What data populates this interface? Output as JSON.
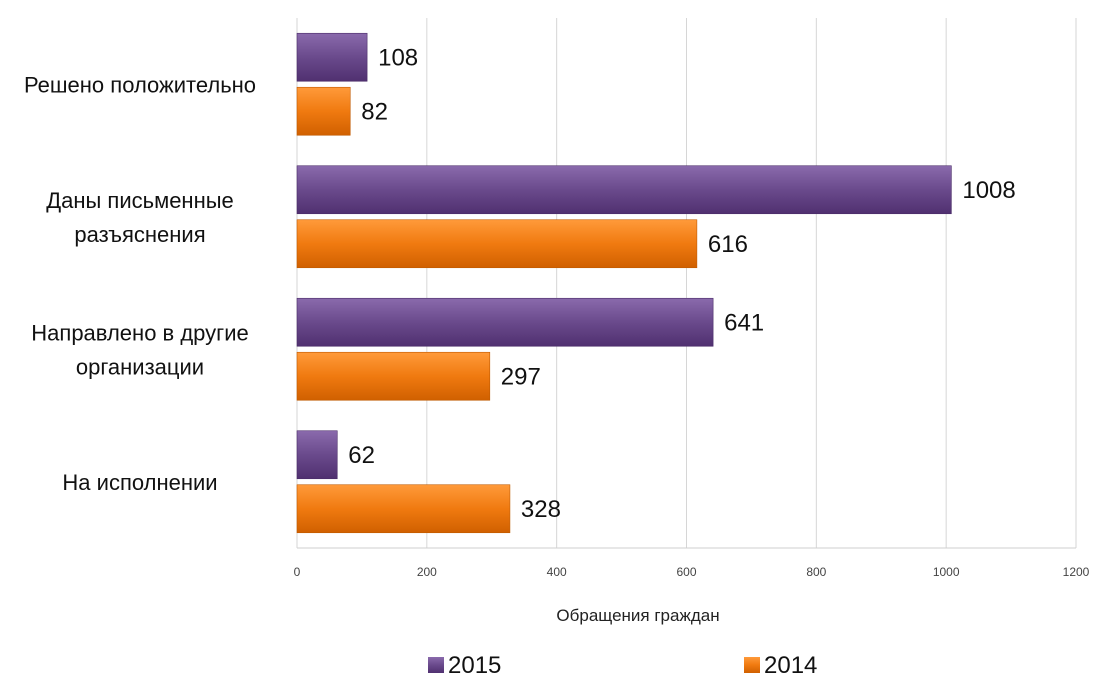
{
  "chart_data": {
    "type": "bar",
    "orientation": "horizontal",
    "categories": [
      "Решено положительно",
      "Даны письменные разъяснения",
      "Направлено в другие организации",
      "На исполнении"
    ],
    "category_lines": [
      [
        "Решено положительно"
      ],
      [
        "Даны письменные",
        "разъяснения"
      ],
      [
        "Направлено в другие",
        "организации"
      ],
      [
        "На исполнении"
      ]
    ],
    "series": [
      {
        "name": "2015",
        "values": [
          108,
          1008,
          641,
          62
        ],
        "color": "#6a4a8c"
      },
      {
        "name": "2014",
        "values": [
          82,
          616,
          297,
          328
        ],
        "color": "#f07a10"
      }
    ],
    "xlabel": "Обращения  граждан",
    "xlim": [
      0,
      1200
    ],
    "xticks": [
      "0",
      "200",
      "400",
      "600",
      "800",
      "1000",
      "1200"
    ],
    "grid": "vertical",
    "legend_position": "bottom"
  }
}
